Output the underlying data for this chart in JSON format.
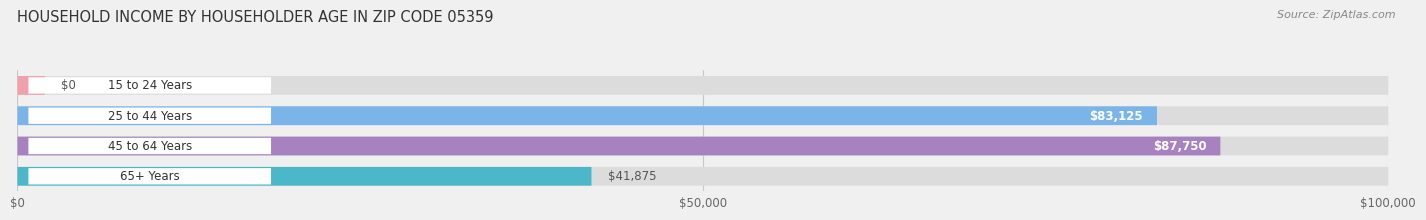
{
  "title": "HOUSEHOLD INCOME BY HOUSEHOLDER AGE IN ZIP CODE 05359",
  "source": "Source: ZipAtlas.com",
  "categories": [
    "15 to 24 Years",
    "25 to 44 Years",
    "45 to 64 Years",
    "65+ Years"
  ],
  "values": [
    0,
    83125,
    87750,
    41875
  ],
  "bar_colors": [
    "#f0a0aa",
    "#7ab4e8",
    "#a882c0",
    "#4ab8c8"
  ],
  "background_color": "#f0f0f0",
  "bar_bg_color": "#dcdcdc",
  "xlim_max": 100000,
  "xticks": [
    0,
    50000,
    100000
  ],
  "xtick_labels": [
    "$0",
    "$50,000",
    "$100,000"
  ],
  "value_labels": [
    "$0",
    "$83,125",
    "$87,750",
    "$41,875"
  ],
  "value_inside": [
    false,
    true,
    true,
    false
  ],
  "label_text_color_inside": "#ffffff",
  "label_text_color_outside": "#555555"
}
